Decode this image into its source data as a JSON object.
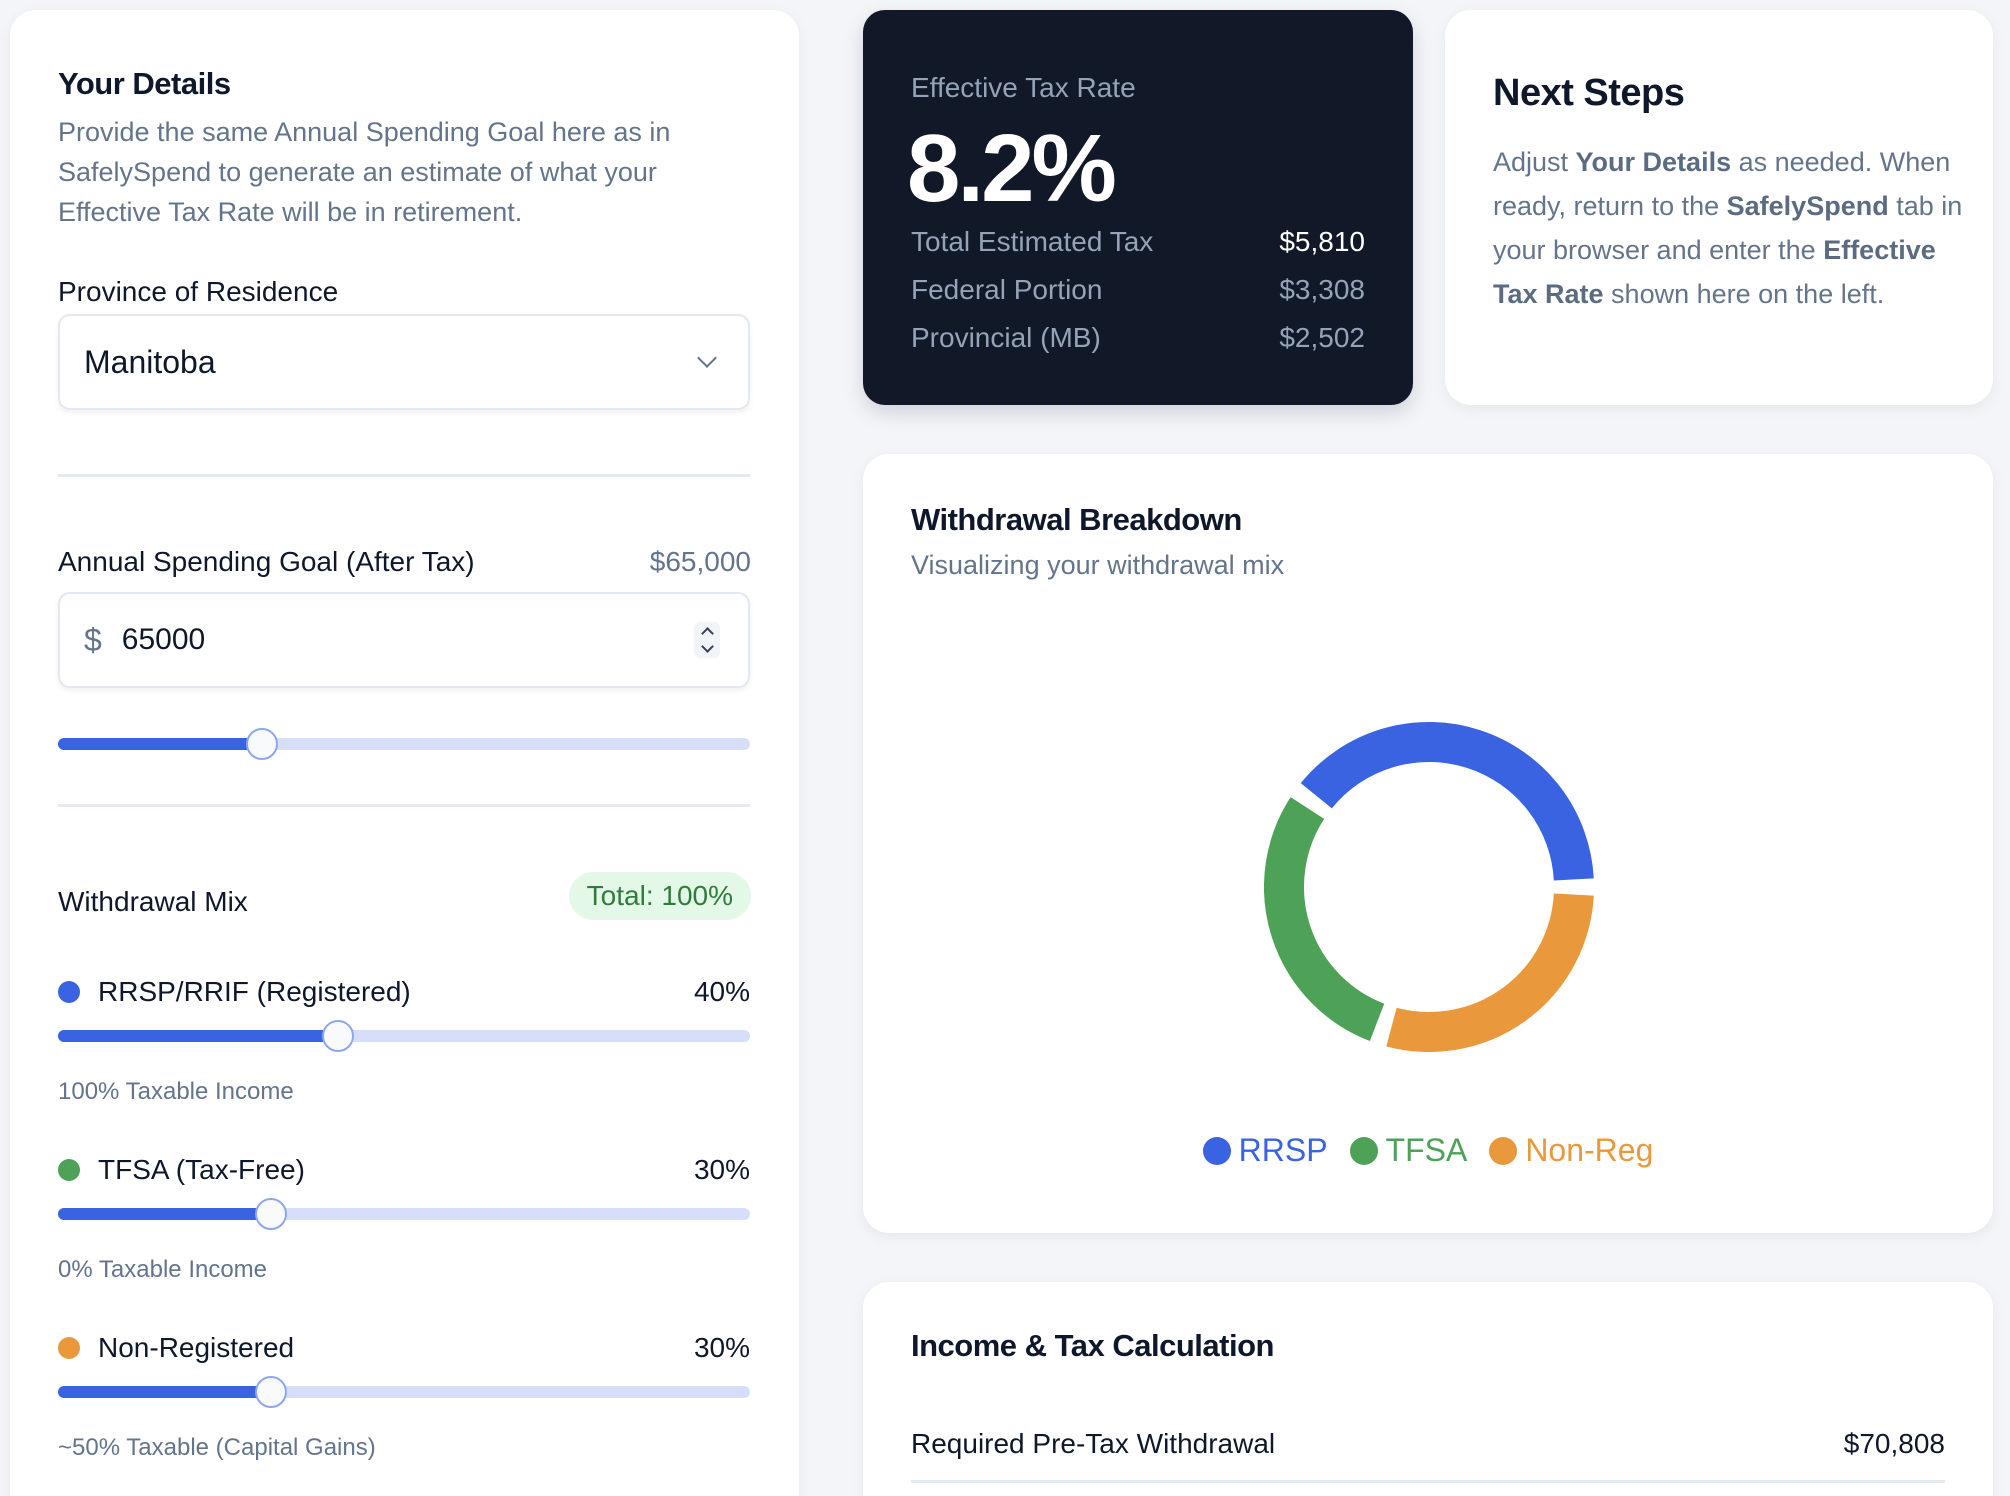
{
  "your_details": {
    "title": "Your Details",
    "intro": "Provide the same Annual Spending Goal here as in SafelySpend to generate an estimate of what your Effective Tax Rate will be in retirement.",
    "province": {
      "label": "Province of Residence",
      "selected": "Manitoba",
      "icon": "chevron-down-icon"
    },
    "spending": {
      "label": "Annual Spending Goal (After Tax)",
      "display_value": "$65,000",
      "currency_symbol": "$",
      "input_value": "65000",
      "slider_percent": 30
    },
    "mix": {
      "label": "Withdrawal Mix",
      "total_badge": "Total: 100%",
      "accounts": [
        {
          "name": "RRSP/RRIF (Registered)",
          "percent_label": "40%",
          "percent": 40,
          "note": "100% Taxable Income",
          "color": "#3a63e2"
        },
        {
          "name": "TFSA (Tax-Free)",
          "percent_label": "30%",
          "percent": 30,
          "note": "0% Taxable Income",
          "color": "#4da257"
        },
        {
          "name": "Non-Registered",
          "percent_label": "30%",
          "percent": 30,
          "note": "~50% Taxable (Capital Gains)",
          "color": "#e9993b"
        }
      ]
    }
  },
  "tax_card": {
    "label": "Effective Tax Rate",
    "rate": "8.2%",
    "rows": [
      {
        "label": "Total Estimated Tax",
        "value": "$5,810"
      },
      {
        "label": "Federal Portion",
        "value": "$3,308"
      },
      {
        "label": "Provincial (MB)",
        "value": "$2,502"
      }
    ]
  },
  "next_steps": {
    "title": "Next Steps",
    "parts": [
      "Adjust ",
      "Your Details",
      " as needed. When ready, return to the ",
      "SafelySpend",
      " tab in your browser and enter the ",
      "Effective Tax Rate",
      " shown here on the left."
    ]
  },
  "breakdown": {
    "title": "Withdrawal Breakdown",
    "subtitle": "Visualizing your withdrawal mix",
    "legend": [
      {
        "label": "RRSP",
        "color": "#3a63e2"
      },
      {
        "label": "TFSA",
        "color": "#4da257"
      },
      {
        "label": "Non-Reg",
        "color": "#e9993b"
      }
    ]
  },
  "chart_data": {
    "type": "pie",
    "title": "Withdrawal Breakdown",
    "subtitle": "Visualizing your withdrawal mix",
    "categories": [
      "RRSP",
      "TFSA",
      "Non-Reg"
    ],
    "values": [
      40,
      30,
      30
    ],
    "colors": [
      "#3a63e2",
      "#4da257",
      "#e9993b"
    ],
    "donut": true,
    "legend_position": "bottom"
  },
  "income": {
    "title": "Income & Tax Calculation",
    "rows": [
      {
        "label": "Required Pre-Tax Withdrawal",
        "value": "$70,808"
      }
    ]
  }
}
